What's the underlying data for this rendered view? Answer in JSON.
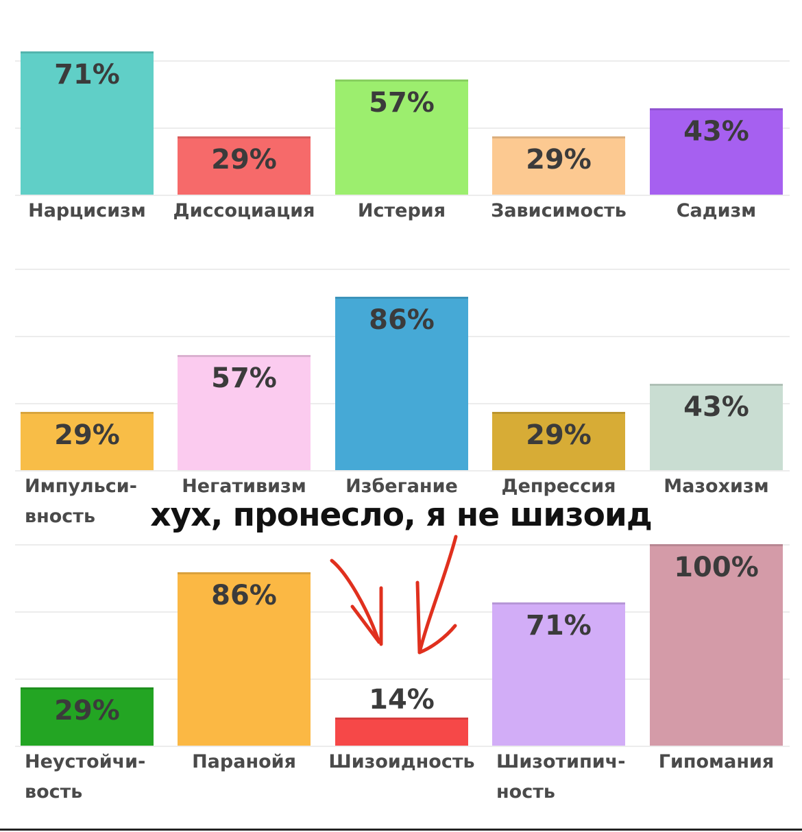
{
  "caption": "хух, пронесло, я не шизоид",
  "chart_data": [
    {
      "type": "bar",
      "categories": [
        "Нарцисизм",
        "Диссоциация",
        "Истерия",
        "Зависимость",
        "Садизм"
      ],
      "values": [
        71,
        29,
        57,
        29,
        43
      ],
      "value_labels": [
        "71%",
        "29%",
        "57%",
        "29%",
        "43%"
      ],
      "colors": [
        "#60cfc7",
        "#f66a6a",
        "#9cee6e",
        "#fcc991",
        "#a660f0"
      ],
      "ylim": [
        0,
        71
      ]
    },
    {
      "type": "bar",
      "categories": [
        "Импульси-\nвность",
        "Негативизм",
        "Избегание",
        "Депрессия",
        "Мазохизм"
      ],
      "values": [
        29,
        57,
        86,
        29,
        43
      ],
      "value_labels": [
        "29%",
        "57%",
        "86%",
        "29%",
        "43%"
      ],
      "colors": [
        "#f8bd47",
        "#fbcbef",
        "#46a9d6",
        "#d7ac36",
        "#c9ddd2"
      ],
      "ylim": [
        0,
        86
      ]
    },
    {
      "type": "bar",
      "categories": [
        "Неустойчи-\nвость",
        "Паранойя",
        "Шизоидность",
        "Шизотипич-\nность",
        "Гипомания"
      ],
      "values": [
        29,
        86,
        14,
        71,
        100
      ],
      "value_labels": [
        "29%",
        "86%",
        "14%",
        "71%",
        "100%"
      ],
      "colors": [
        "#23a523",
        "#fbb844",
        "#f64848",
        "#d2adf7",
        "#d49ba8"
      ],
      "ylim": [
        0,
        100
      ]
    }
  ]
}
